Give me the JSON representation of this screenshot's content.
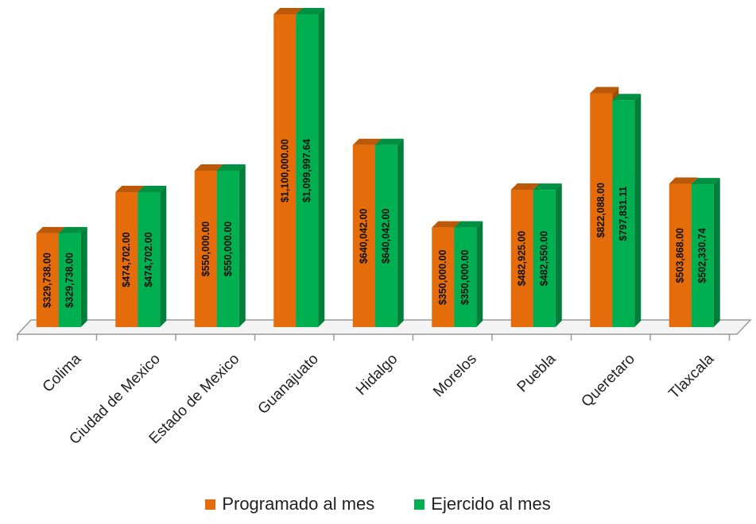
{
  "chart_data": {
    "type": "bar",
    "title": "",
    "xlabel": "",
    "ylabel": "",
    "categories": [
      "Colima",
      "Ciudad de Mexico",
      "Estado de Mexico",
      "Guanajuato",
      "Hidalgo",
      "Morelos",
      "Puebla",
      "Queretaro",
      "Tlaxcala"
    ],
    "series": [
      {
        "name": "Programado al mes",
        "color": "#E46C0A",
        "values": [
          329738.0,
          474702.0,
          550000.0,
          1100000.0,
          640042.0,
          350000.0,
          482925.0,
          822088.0,
          503868.0
        ],
        "labels": [
          "$329,738.00",
          "$474,702.00",
          "$550,000.00",
          "$1,100,000.00",
          "$640,042.00",
          "$350,000.00",
          "$482,925.00",
          "$822,088.00",
          "$503,868.00"
        ]
      },
      {
        "name": "Ejercido al mes",
        "color": "#00B050",
        "values": [
          329738.0,
          474702.0,
          550000.0,
          1099997.64,
          640042.0,
          350000.0,
          482550.0,
          797831.11,
          502330.74
        ],
        "labels": [
          "$329,738.00",
          "$474,702.00",
          "$550,000.00",
          "$1,099,997.64",
          "$640,042.00",
          "$350,000.00",
          "$482,550.00",
          "$797,831.11",
          "$502,330.74"
        ]
      }
    ],
    "ylim": [
      0,
      1100000
    ],
    "grid": false,
    "legend_position": "bottom"
  }
}
